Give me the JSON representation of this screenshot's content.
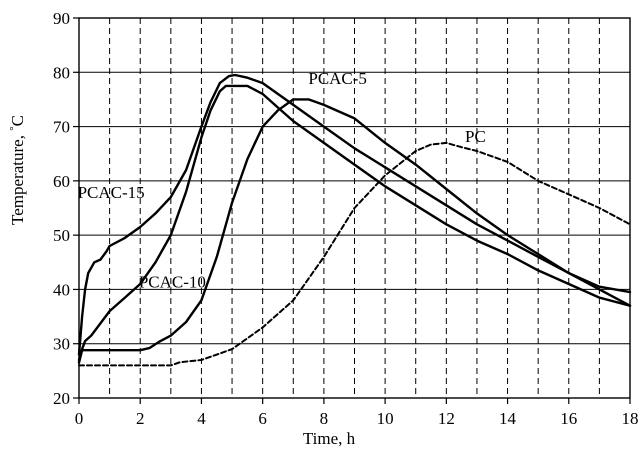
{
  "chart_data": {
    "type": "line",
    "xlabel": "Time, h",
    "ylabel": "Temperature, ",
    "ylabel_unit": "°C",
    "xlim": [
      0,
      18
    ],
    "ylim": [
      20,
      90
    ],
    "x_ticks": [
      0,
      2,
      4,
      6,
      8,
      10,
      12,
      14,
      16,
      18
    ],
    "y_ticks": [
      20,
      30,
      40,
      50,
      60,
      70,
      80,
      90
    ],
    "grid": {
      "horizontal": "solid",
      "vertical": "dashed",
      "vertical_step": 1
    },
    "series": [
      {
        "name": "PCAC-15",
        "style": "solid",
        "x": [
          0,
          0.1,
          0.2,
          0.3,
          0.5,
          0.7,
          0.9,
          1.0,
          1.5,
          2.0,
          2.5,
          3.0,
          3.5,
          4.0,
          4.3,
          4.6,
          4.9,
          5.1,
          5.5,
          6.0,
          6.5,
          7.0,
          8.0,
          9.0,
          10.0,
          11.0,
          12.0,
          13.0,
          14.0,
          15.0,
          16.0,
          17.0,
          18.0
        ],
        "y": [
          28,
          35,
          40,
          43,
          45,
          45.5,
          47,
          48,
          49.5,
          51.5,
          54,
          57,
          62,
          70,
          74.5,
          78,
          79.3,
          79.5,
          79,
          78,
          76,
          74,
          70,
          66,
          62.5,
          59,
          55.5,
          52,
          49,
          46,
          43,
          40.5,
          39.5
        ]
      },
      {
        "name": "PCAC-10",
        "style": "solid",
        "x": [
          0,
          0.1,
          0.2,
          0.4,
          0.6,
          1.0,
          1.5,
          2.0,
          2.5,
          3.0,
          3.5,
          4.0,
          4.3,
          4.6,
          4.8,
          5.0,
          5.5,
          6.0,
          6.5,
          7.0,
          8.0,
          9.0,
          10.0,
          11.0,
          12.0,
          13.0,
          14.0,
          15.0,
          16.0,
          17.0,
          18.0
        ],
        "y": [
          27,
          29,
          30.5,
          31.5,
          33,
          36,
          38.5,
          41,
          45,
          50,
          58,
          68,
          73,
          76.5,
          77.5,
          77.5,
          77.5,
          76,
          73.5,
          71,
          67,
          63,
          59,
          55.5,
          52,
          49,
          46.5,
          43.5,
          41,
          38.5,
          37
        ]
      },
      {
        "name": "PCAC-5",
        "style": "solid",
        "x": [
          0,
          0.1,
          0.5,
          1.0,
          2.0,
          2.3,
          2.6,
          3.0,
          3.5,
          4.0,
          4.5,
          5.0,
          5.5,
          6.0,
          6.5,
          7.0,
          7.5,
          8.0,
          9.0,
          10.0,
          11.0,
          12.0,
          13.0,
          14.0,
          15.0,
          16.0,
          17.0,
          18.0
        ],
        "y": [
          26.5,
          28.8,
          28.8,
          28.8,
          28.8,
          29.2,
          30.3,
          31.5,
          34,
          38,
          46,
          56,
          64,
          70,
          73,
          75,
          75,
          74,
          71.5,
          67,
          63,
          58.5,
          54,
          50,
          46.5,
          43,
          40,
          37
        ]
      },
      {
        "name": "PC",
        "style": "dashed",
        "x": [
          0,
          1,
          2,
          3,
          3.3,
          4.0,
          4.5,
          5.0,
          5.5,
          6.0,
          7.0,
          8.0,
          9.0,
          10.0,
          11.0,
          11.5,
          12.0,
          12.5,
          13.0,
          14.0,
          15.0,
          16.0,
          17.0,
          18.0
        ],
        "y": [
          26,
          26,
          26,
          26,
          26.6,
          27,
          28,
          29,
          31,
          33,
          38,
          46,
          55,
          61,
          65.5,
          66.7,
          67,
          66.2,
          65.5,
          63.5,
          60,
          57.5,
          55,
          52
        ]
      }
    ],
    "annotations": [
      {
        "text": "PCAC-15",
        "x": 1.05,
        "y": 56.8
      },
      {
        "text": "PCAC-10",
        "x": 3.05,
        "y": 40.4
      },
      {
        "text": "PCAC-5",
        "x": 8.45,
        "y": 77.8
      },
      {
        "text": "PC",
        "x": 12.95,
        "y": 67.2
      }
    ]
  }
}
